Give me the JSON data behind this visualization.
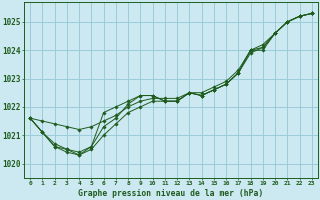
{
  "title": "Graphe pression niveau de la mer (hPa)",
  "background_color": "#cce8f0",
  "grid_color": "#99ccd9",
  "line_color": "#1e5c1e",
  "xlim": [
    -0.5,
    23.5
  ],
  "ylim": [
    1019.5,
    1025.7
  ],
  "yticks": [
    1020,
    1021,
    1022,
    1023,
    1024,
    1025
  ],
  "xtick_labels": [
    "0",
    "1",
    "2",
    "3",
    "4",
    "5",
    "6",
    "7",
    "8",
    "9",
    "10",
    "11",
    "12",
    "13",
    "14",
    "15",
    "16",
    "17",
    "18",
    "19",
    "20",
    "21",
    "22",
    "23"
  ],
  "series": [
    [
      1021.6,
      1021.1,
      1020.6,
      1020.5,
      1020.3,
      1020.5,
      1021.0,
      1021.4,
      1021.8,
      1022.0,
      1022.2,
      1022.2,
      1022.2,
      1022.5,
      1022.4,
      1022.6,
      1022.8,
      1023.2,
      1024.0,
      1024.0,
      1024.6,
      1025.0,
      1025.2,
      1025.3
    ],
    [
      1021.6,
      1021.1,
      1020.6,
      1020.4,
      1020.3,
      1020.6,
      1021.3,
      1021.6,
      1022.1,
      1022.4,
      1022.4,
      1022.2,
      1022.2,
      1022.5,
      1022.4,
      1022.6,
      1022.8,
      1023.2,
      1024.0,
      1024.1,
      1024.6,
      1025.0,
      1025.2,
      1025.3
    ],
    [
      1021.6,
      1021.1,
      1020.7,
      1020.5,
      1020.4,
      1020.6,
      1021.8,
      1022.0,
      1022.2,
      1022.4,
      1022.4,
      1022.2,
      1022.2,
      1022.5,
      1022.4,
      1022.6,
      1022.8,
      1023.2,
      1023.9,
      1024.1,
      1024.6,
      1025.0,
      1025.2,
      1025.3
    ],
    [
      1021.6,
      1021.5,
      1021.4,
      1021.3,
      1021.2,
      1021.3,
      1021.5,
      1021.7,
      1022.0,
      1022.2,
      1022.3,
      1022.3,
      1022.3,
      1022.5,
      1022.5,
      1022.7,
      1022.9,
      1023.3,
      1024.0,
      1024.2,
      1024.6,
      1025.0,
      1025.2,
      1025.3
    ]
  ]
}
